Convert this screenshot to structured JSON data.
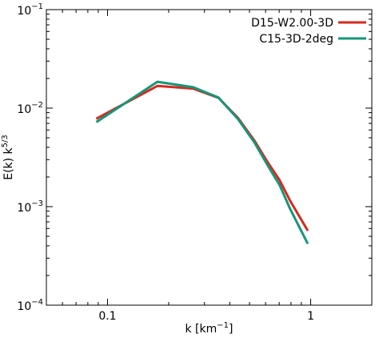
{
  "chart_data": {
    "type": "line",
    "xscale": "log",
    "yscale": "log",
    "xlim": [
      0.05,
      2.0
    ],
    "ylim": [
      0.0001,
      0.1
    ],
    "xlabel": "k [km",
    "xlabel_sup": "−1",
    "xlabel_end": "]",
    "ylabel": "E(k) k",
    "ylabel_sup": "5/3",
    "xticks": [
      {
        "value": 0.1,
        "label": "0.1"
      },
      {
        "value": 1,
        "label": "1"
      }
    ],
    "yticks": [
      {
        "value": 0.0001,
        "base": "10",
        "exp": "−4"
      },
      {
        "value": 0.001,
        "base": "10",
        "exp": "−3"
      },
      {
        "value": 0.01,
        "base": "10",
        "exp": "−2"
      },
      {
        "value": 0.1,
        "base": "10",
        "exp": "−1"
      }
    ],
    "legend_position": "top-right",
    "series": [
      {
        "name": "D15-W2.00-3D",
        "color": "#d62a1f",
        "x": [
          0.088,
          0.176,
          0.264,
          0.352,
          0.44,
          0.528,
          0.616,
          0.704,
          0.792,
          0.968
        ],
        "y": [
          0.0078,
          0.0168,
          0.0158,
          0.0127,
          0.0079,
          0.0047,
          0.0028,
          0.00185,
          0.00115,
          0.00057
        ]
      },
      {
        "name": "C15-3D-2deg",
        "color": "#14967a",
        "x": [
          0.088,
          0.176,
          0.264,
          0.352,
          0.44,
          0.528,
          0.616,
          0.704,
          0.792,
          0.968
        ],
        "y": [
          0.0072,
          0.0185,
          0.0163,
          0.0128,
          0.0077,
          0.0045,
          0.0026,
          0.00165,
          0.00095,
          0.00042
        ]
      }
    ]
  }
}
